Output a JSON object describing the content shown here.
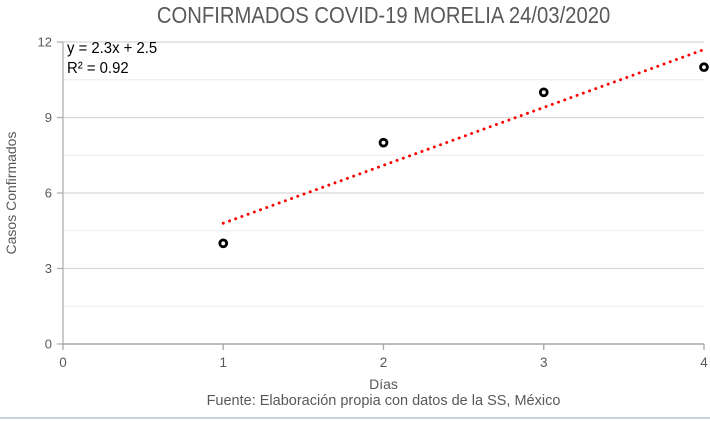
{
  "chart_data": {
    "type": "scatter",
    "title": "CONFIRMADOS COVID-19 MORELIA 24/03/2020",
    "x": [
      1,
      2,
      3,
      4
    ],
    "y": [
      4,
      8,
      10,
      11
    ],
    "xlabel": "Días",
    "ylabel": "Casos Confirmados",
    "source_note": "Fuente: Elaboración propia con datos de la SS, México",
    "xlim": [
      0,
      4
    ],
    "ylim": [
      0,
      12
    ],
    "x_ticks": [
      0,
      1,
      2,
      3,
      4
    ],
    "y_ticks": [
      0,
      3,
      6,
      9,
      12
    ],
    "y_minor_step": 1.5,
    "grid": "horizontal, major and minor, no vertical gridlines",
    "legend": "none",
    "marker": {
      "shape": "open-circle",
      "stroke": "#000000",
      "fill": "#ffffff"
    },
    "trendline": {
      "equation_label": "y = 2.3x + 2.5",
      "r2_label": "R² = 0.92",
      "slope": 2.3,
      "intercept": 2.5,
      "x_start": 1,
      "x_end": 4,
      "style": "dotted",
      "color": "#ff0000"
    },
    "colors": {
      "title_text": "#595959",
      "axis_text": "#595959",
      "axis_line": "#b0b0b0",
      "x_axis_line": "#a6a6a6",
      "grid_major": "#d8d8d8",
      "grid_minor": "#efefef",
      "bottom_rule": "#c9d3e0"
    }
  }
}
